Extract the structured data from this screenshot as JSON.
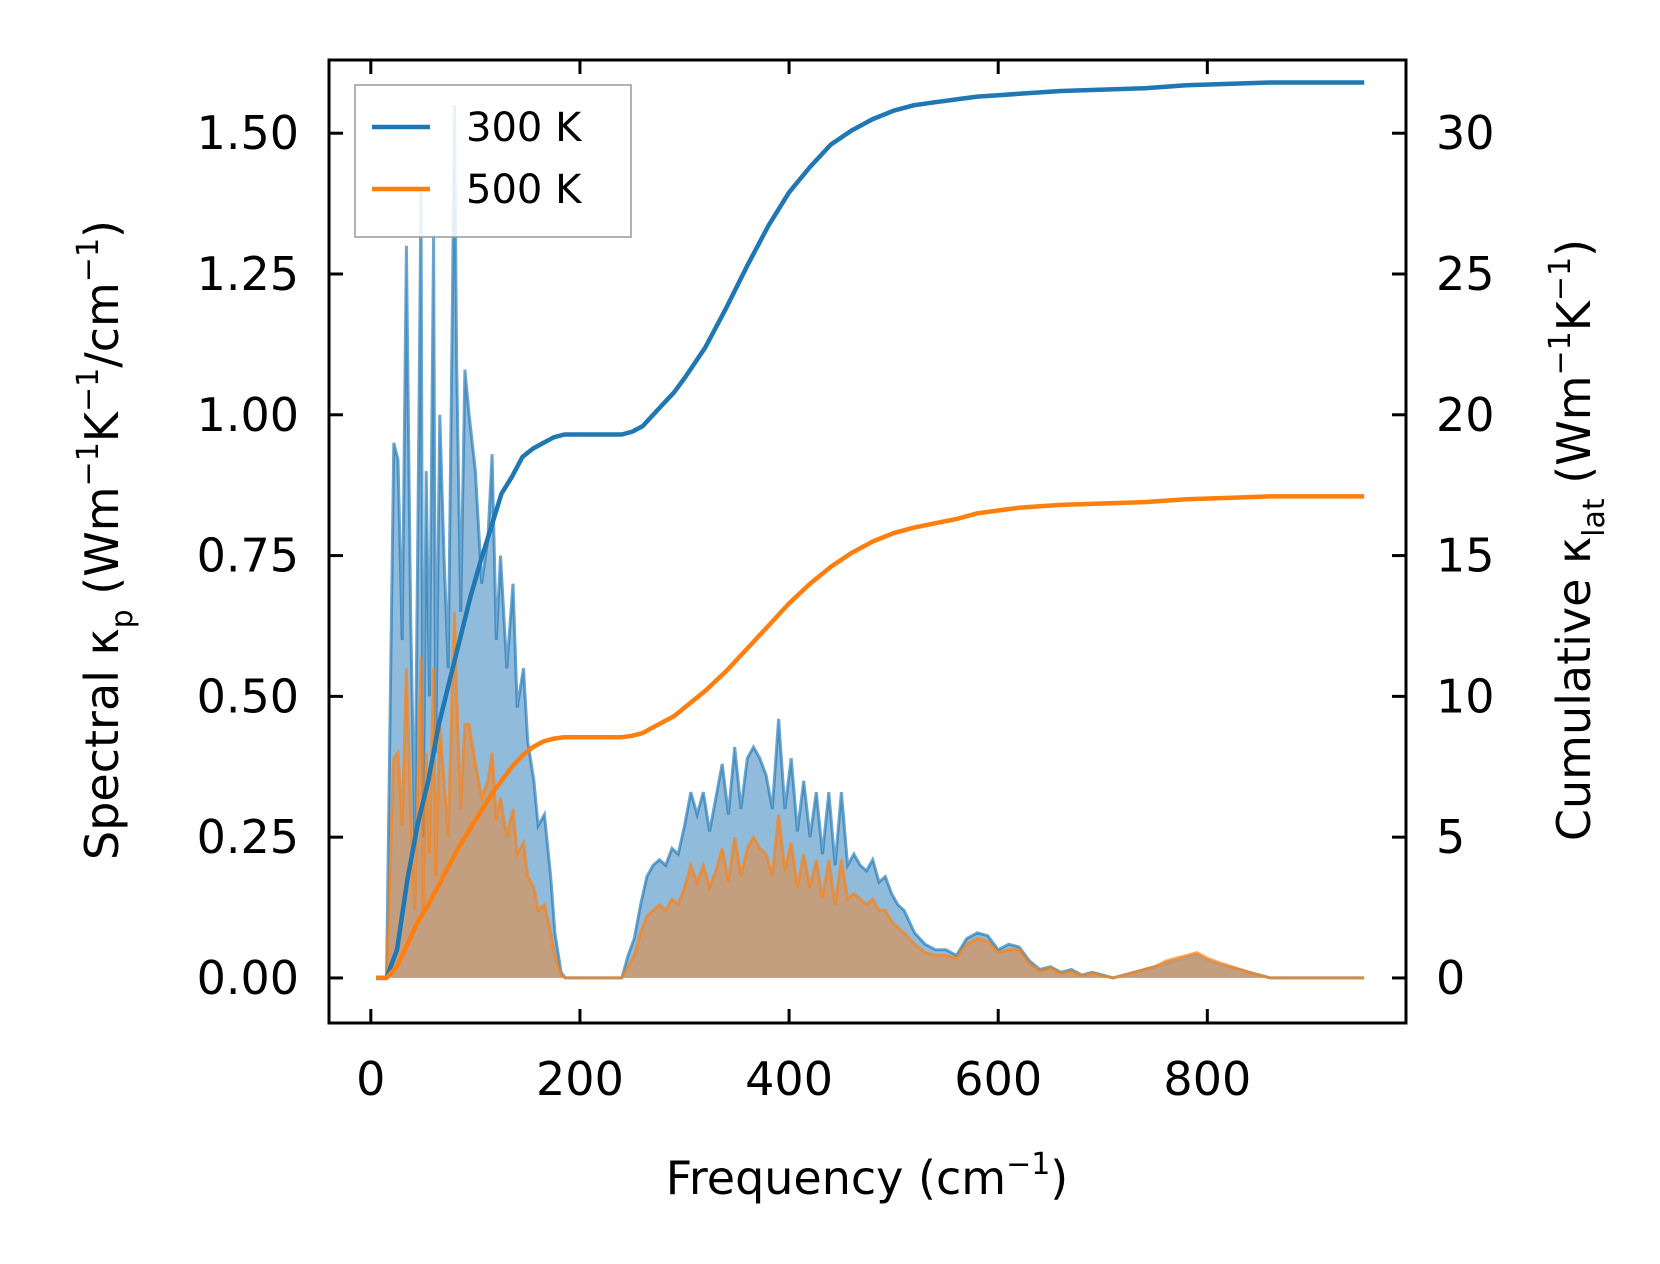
{
  "chart_data": {
    "type": "line",
    "xlabel_main": "Frequency (cm",
    "xlabel_sup": "−1",
    "xlabel_end": ")",
    "ylabel_left_parts": [
      "Spectral κ",
      "p",
      " (Wm",
      "−1",
      "K",
      "−1",
      "/cm",
      "−1",
      ")"
    ],
    "ylabel_right_parts": [
      "Cumulative κ",
      "lat",
      " (Wm",
      "−1",
      "K",
      "−1",
      ")"
    ],
    "xlim": [
      -40,
      990
    ],
    "ylim_left": [
      -0.08,
      1.63
    ],
    "ylim_right": [
      -1.6,
      32.6
    ],
    "x_ticks": [
      0,
      200,
      400,
      600,
      800
    ],
    "x_tick_labels": [
      "0",
      "200",
      "400",
      "600",
      "800"
    ],
    "y_left_ticks": [
      0,
      0.25,
      0.5,
      0.75,
      1.0,
      1.25,
      1.5
    ],
    "y_left_tick_labels": [
      "0.00",
      "0.25",
      "0.50",
      "0.75",
      "1.00",
      "1.25",
      "1.50"
    ],
    "y_right_ticks": [
      0,
      5,
      10,
      15,
      20,
      25,
      30
    ],
    "y_right_tick_labels": [
      "0",
      "5",
      "10",
      "15",
      "20",
      "25",
      "30"
    ],
    "legend": {
      "placement": "top-left",
      "entries": [
        "300 K",
        "500 K"
      ]
    },
    "colors": {
      "s300": "#1f77b4",
      "s500": "#ff7f0e",
      "fill300": "#8bb7d9",
      "fill500": "#c99c74"
    },
    "spectral": [
      {
        "name": "300 K",
        "x": [
          5,
          15,
          22,
          26,
          30,
          34,
          38,
          42,
          45,
          48,
          50,
          53,
          56,
          60,
          62,
          66,
          70,
          74,
          78,
          80,
          82,
          86,
          90,
          94,
          100,
          106,
          112,
          116,
          120,
          124,
          130,
          136,
          140,
          146,
          150,
          156,
          160,
          166,
          172,
          176,
          182,
          186,
          192,
          200,
          240,
          246,
          252,
          258,
          264,
          270,
          276,
          282,
          288,
          294,
          300,
          306,
          312,
          318,
          324,
          330,
          336,
          342,
          348,
          354,
          360,
          366,
          372,
          378,
          384,
          390,
          396,
          402,
          408,
          414,
          420,
          426,
          432,
          438,
          444,
          450,
          456,
          462,
          468,
          474,
          480,
          486,
          492,
          498,
          504,
          510,
          520,
          530,
          540,
          550,
          560,
          570,
          580,
          590,
          600,
          610,
          620,
          630,
          640,
          650,
          660,
          670,
          680,
          690,
          700,
          710,
          720,
          730,
          740,
          750,
          760,
          770,
          780,
          790,
          800,
          810,
          820,
          830,
          840,
          850,
          860,
          870,
          900,
          950
        ],
        "y": [
          0,
          0,
          0.95,
          0.92,
          0.6,
          1.3,
          0.65,
          0.25,
          0.8,
          1.4,
          0.25,
          0.9,
          0.5,
          1.32,
          0.4,
          1.0,
          0.75,
          0.55,
          1.2,
          1.55,
          1.1,
          0.65,
          1.08,
          1.0,
          0.9,
          0.7,
          0.78,
          0.93,
          0.6,
          0.75,
          0.55,
          0.7,
          0.48,
          0.55,
          0.42,
          0.35,
          0.27,
          0.29,
          0.18,
          0.08,
          0.01,
          0,
          0,
          0,
          0,
          0.04,
          0.07,
          0.13,
          0.18,
          0.2,
          0.21,
          0.2,
          0.23,
          0.22,
          0.27,
          0.33,
          0.29,
          0.33,
          0.26,
          0.32,
          0.38,
          0.29,
          0.41,
          0.3,
          0.39,
          0.41,
          0.39,
          0.36,
          0.3,
          0.46,
          0.3,
          0.39,
          0.26,
          0.35,
          0.25,
          0.33,
          0.22,
          0.33,
          0.2,
          0.33,
          0.2,
          0.22,
          0.2,
          0.19,
          0.21,
          0.17,
          0.18,
          0.15,
          0.13,
          0.12,
          0.08,
          0.06,
          0.05,
          0.05,
          0.04,
          0.07,
          0.08,
          0.075,
          0.05,
          0.06,
          0.055,
          0.03,
          0.015,
          0.02,
          0.01,
          0.015,
          0.005,
          0.01,
          0.005,
          0,
          0.005,
          0.01,
          0.015,
          0.02,
          0.025,
          0.03,
          0.035,
          0.04,
          0.03,
          0.025,
          0.02,
          0.015,
          0.01,
          0.005,
          0,
          0,
          0,
          0
        ]
      },
      {
        "name": "500 K",
        "x": [
          5,
          15,
          22,
          26,
          30,
          34,
          38,
          42,
          45,
          48,
          50,
          53,
          56,
          60,
          62,
          66,
          70,
          74,
          78,
          80,
          82,
          86,
          90,
          94,
          100,
          106,
          112,
          116,
          120,
          124,
          130,
          136,
          140,
          146,
          150,
          156,
          160,
          166,
          172,
          176,
          182,
          186,
          192,
          200,
          240,
          246,
          252,
          258,
          264,
          270,
          276,
          282,
          288,
          294,
          300,
          306,
          312,
          318,
          324,
          330,
          336,
          342,
          348,
          354,
          360,
          366,
          372,
          378,
          384,
          390,
          396,
          402,
          408,
          414,
          420,
          426,
          432,
          438,
          444,
          450,
          456,
          462,
          468,
          474,
          480,
          486,
          492,
          498,
          504,
          510,
          520,
          530,
          540,
          550,
          560,
          570,
          580,
          590,
          600,
          610,
          620,
          630,
          640,
          650,
          660,
          670,
          680,
          690,
          700,
          710,
          720,
          730,
          740,
          750,
          760,
          770,
          780,
          790,
          800,
          810,
          820,
          830,
          840,
          850,
          860,
          870,
          900,
          950
        ],
        "y": [
          0,
          0,
          0.39,
          0.4,
          0.27,
          0.55,
          0.3,
          0.12,
          0.35,
          0.57,
          0.12,
          0.4,
          0.22,
          0.55,
          0.18,
          0.45,
          0.35,
          0.25,
          0.52,
          0.65,
          0.5,
          0.3,
          0.45,
          0.45,
          0.38,
          0.32,
          0.35,
          0.4,
          0.28,
          0.32,
          0.25,
          0.3,
          0.22,
          0.24,
          0.18,
          0.16,
          0.12,
          0.13,
          0.08,
          0.04,
          0.005,
          0,
          0,
          0,
          0,
          0.02,
          0.04,
          0.08,
          0.11,
          0.12,
          0.13,
          0.12,
          0.14,
          0.13,
          0.16,
          0.2,
          0.17,
          0.2,
          0.16,
          0.19,
          0.23,
          0.17,
          0.25,
          0.18,
          0.23,
          0.25,
          0.23,
          0.22,
          0.18,
          0.29,
          0.19,
          0.24,
          0.16,
          0.22,
          0.16,
          0.21,
          0.14,
          0.21,
          0.13,
          0.21,
          0.14,
          0.15,
          0.14,
          0.13,
          0.14,
          0.12,
          0.12,
          0.1,
          0.09,
          0.08,
          0.06,
          0.045,
          0.04,
          0.04,
          0.035,
          0.06,
          0.07,
          0.065,
          0.045,
          0.05,
          0.05,
          0.025,
          0.012,
          0.018,
          0.008,
          0.012,
          0.004,
          0.008,
          0.004,
          0,
          0.005,
          0.01,
          0.015,
          0.02,
          0.03,
          0.035,
          0.04,
          0.045,
          0.035,
          0.028,
          0.022,
          0.016,
          0.01,
          0.005,
          0,
          0,
          0,
          0
        ]
      }
    ],
    "cumulative": [
      {
        "name": "300 K",
        "x": [
          5,
          15,
          25,
          35,
          45,
          55,
          65,
          75,
          85,
          95,
          105,
          115,
          125,
          135,
          145,
          155,
          165,
          175,
          185,
          200,
          220,
          240,
          250,
          260,
          270,
          280,
          290,
          300,
          320,
          340,
          360,
          380,
          400,
          420,
          440,
          460,
          480,
          500,
          520,
          540,
          560,
          580,
          600,
          620,
          640,
          660,
          700,
          740,
          780,
          820,
          860,
          900,
          950
        ],
        "y": [
          0,
          0,
          1.0,
          3.5,
          5.5,
          7.0,
          9.0,
          10.5,
          12.0,
          13.5,
          14.8,
          16.0,
          17.2,
          17.8,
          18.5,
          18.8,
          19.0,
          19.2,
          19.3,
          19.3,
          19.3,
          19.3,
          19.4,
          19.6,
          20.0,
          20.4,
          20.8,
          21.3,
          22.4,
          23.8,
          25.3,
          26.7,
          27.9,
          28.8,
          29.6,
          30.1,
          30.5,
          30.8,
          31.0,
          31.1,
          31.2,
          31.3,
          31.35,
          31.4,
          31.45,
          31.5,
          31.55,
          31.6,
          31.7,
          31.75,
          31.8,
          31.8,
          31.8
        ]
      },
      {
        "name": "500 K",
        "x": [
          5,
          15,
          25,
          35,
          45,
          55,
          65,
          75,
          85,
          95,
          105,
          115,
          125,
          135,
          145,
          155,
          165,
          175,
          185,
          200,
          220,
          240,
          250,
          260,
          270,
          280,
          290,
          300,
          320,
          340,
          360,
          380,
          400,
          420,
          440,
          460,
          480,
          500,
          520,
          540,
          560,
          580,
          600,
          620,
          640,
          660,
          700,
          740,
          780,
          820,
          860,
          900,
          950
        ],
        "y": [
          0,
          0,
          0.4,
          1.2,
          2.0,
          2.6,
          3.3,
          4.0,
          4.7,
          5.3,
          5.9,
          6.5,
          7.0,
          7.5,
          7.9,
          8.2,
          8.4,
          8.5,
          8.55,
          8.55,
          8.55,
          8.55,
          8.6,
          8.7,
          8.9,
          9.1,
          9.3,
          9.6,
          10.2,
          10.9,
          11.7,
          12.5,
          13.3,
          14.0,
          14.6,
          15.1,
          15.5,
          15.8,
          16.0,
          16.15,
          16.3,
          16.5,
          16.6,
          16.7,
          16.75,
          16.8,
          16.85,
          16.9,
          17.0,
          17.05,
          17.1,
          17.1,
          17.1
        ]
      }
    ]
  }
}
